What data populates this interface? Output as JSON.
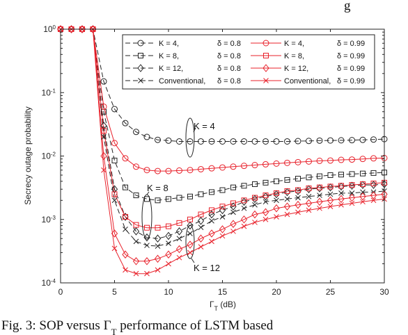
{
  "chart_data": {
    "type": "line",
    "xlabel": "Γ_T (dB)",
    "ylabel": "Secrecy outage probability",
    "xlim": [
      0,
      30
    ],
    "ylim_log10": [
      -4,
      0
    ],
    "yscale": "log",
    "grid": false,
    "legend_position": "top-right",
    "x_ticks": [
      0,
      5,
      10,
      15,
      20,
      25,
      30
    ],
    "y_ticks": [
      {
        "exp": "0"
      },
      {
        "exp": "-1"
      },
      {
        "exp": "-2"
      },
      {
        "exp": "-3"
      },
      {
        "exp": "-4"
      }
    ],
    "x": [
      0,
      1,
      2,
      3,
      4,
      5,
      6,
      7,
      8,
      9,
      10,
      11,
      12,
      13,
      14,
      15,
      16,
      17,
      18,
      19,
      20,
      21,
      22,
      23,
      24,
      25,
      26,
      27,
      28,
      29,
      30
    ],
    "series": [
      {
        "name": "K = 4, δ = 0.8",
        "color": "#222222",
        "dash": "7,4",
        "marker": "circle",
        "values": [
          1,
          1,
          1,
          1,
          0.15,
          0.055,
          0.033,
          0.024,
          0.02,
          0.018,
          0.0175,
          0.017,
          0.017,
          0.017,
          0.017,
          0.017,
          0.017,
          0.017,
          0.017,
          0.017,
          0.017,
          0.017,
          0.0172,
          0.0173,
          0.0175,
          0.0176,
          0.0177,
          0.0178,
          0.018,
          0.0182,
          0.0185
        ]
      },
      {
        "name": "K = 8, δ = 0.8",
        "color": "#222222",
        "dash": "7,4",
        "marker": "square",
        "values": [
          1,
          1,
          1,
          1,
          0.05,
          0.0085,
          0.0032,
          0.0024,
          0.0021,
          0.002,
          0.0021,
          0.0022,
          0.0023,
          0.0025,
          0.0027,
          0.0029,
          0.0032,
          0.0034,
          0.0036,
          0.0038,
          0.004,
          0.0042,
          0.0044,
          0.0046,
          0.0048,
          0.005,
          0.0051,
          0.0052,
          0.0053,
          0.0054,
          0.0055
        ]
      },
      {
        "name": "K = 12, δ = 0.8",
        "color": "#222222",
        "dash": "7,4",
        "marker": "diamond",
        "values": [
          1,
          1,
          1,
          1,
          0.03,
          0.003,
          0.0011,
          0.00065,
          0.00052,
          0.0005,
          0.00055,
          0.00065,
          0.0008,
          0.00095,
          0.0012,
          0.0014,
          0.0016,
          0.0019,
          0.0021,
          0.0023,
          0.0025,
          0.0027,
          0.0028,
          0.003,
          0.0031,
          0.0032,
          0.0033,
          0.0034,
          0.0035,
          0.0035,
          0.0036
        ]
      },
      {
        "name": "Conventional, δ = 0.8",
        "color": "#222222",
        "dash": "7,4",
        "marker": "x",
        "values": [
          1,
          1,
          1,
          1,
          0.02,
          0.002,
          0.0007,
          0.00045,
          0.00039,
          0.00038,
          0.00042,
          0.0005,
          0.0006,
          0.00075,
          0.00095,
          0.0011,
          0.0013,
          0.0015,
          0.0017,
          0.0019,
          0.002,
          0.0021,
          0.0022,
          0.0023,
          0.0024,
          0.0025,
          0.0026,
          0.0026,
          0.0027,
          0.0027,
          0.0028
        ]
      },
      {
        "name": "K = 4, δ = 0.99",
        "color": "#e8202a",
        "dash": "",
        "marker": "circle",
        "values": [
          1,
          1,
          1,
          1,
          0.06,
          0.016,
          0.0092,
          0.0068,
          0.006,
          0.0058,
          0.0058,
          0.0059,
          0.006,
          0.0062,
          0.0064,
          0.0066,
          0.0068,
          0.007,
          0.0072,
          0.0074,
          0.0076,
          0.0078,
          0.008,
          0.0082,
          0.0084,
          0.0085,
          0.0087,
          0.0088,
          0.009,
          0.0092,
          0.0093
        ]
      },
      {
        "name": "K = 8, δ = 0.99",
        "color": "#e8202a",
        "dash": "",
        "marker": "square",
        "values": [
          1,
          1,
          1,
          1,
          0.025,
          0.0025,
          0.0011,
          0.00082,
          0.00074,
          0.00074,
          0.00078,
          0.00088,
          0.001,
          0.0012,
          0.0014,
          0.0016,
          0.0018,
          0.002,
          0.0022,
          0.0024,
          0.0026,
          0.0028,
          0.0029,
          0.0031,
          0.0032,
          0.0033,
          0.0034,
          0.0035,
          0.0036,
          0.0037,
          0.0038
        ]
      },
      {
        "name": "K = 12, δ = 0.99",
        "color": "#e8202a",
        "dash": "",
        "marker": "diamond",
        "values": [
          1,
          1,
          1,
          1,
          0.01,
          0.0006,
          0.00028,
          0.00022,
          0.00022,
          0.00024,
          0.00028,
          0.00034,
          0.0004,
          0.0005,
          0.0006,
          0.0007,
          0.00085,
          0.001,
          0.0012,
          0.0013,
          0.0015,
          0.0016,
          0.0017,
          0.0018,
          0.0019,
          0.002,
          0.0021,
          0.0022,
          0.0023,
          0.0024,
          0.0025
        ]
      },
      {
        "name": "Conventional, δ = 0.99",
        "color": "#e8202a",
        "dash": "",
        "marker": "x",
        "values": [
          1,
          1,
          1,
          1,
          0.006,
          0.00035,
          0.00016,
          0.00014,
          0.00014,
          0.00016,
          0.0002,
          0.00025,
          0.0003,
          0.00037,
          0.00045,
          0.00055,
          0.00065,
          0.00078,
          0.0009,
          0.001,
          0.0011,
          0.0012,
          0.0013,
          0.0014,
          0.0015,
          0.0016,
          0.0017,
          0.0018,
          0.0019,
          0.002,
          0.0021
        ]
      }
    ],
    "legend": {
      "rows": [
        {
          "black": "K = 4,",
          "black_delta": "δ = 0.8",
          "red": "K = 4,",
          "red_delta": "δ = 0.99"
        },
        {
          "black": "K = 8,",
          "black_delta": "δ = 0.8",
          "red": "K = 8,",
          "red_delta": "δ = 0.99"
        },
        {
          "black": "K = 12,",
          "black_delta": "δ = 0.8",
          "red": "K = 12,",
          "red_delta": "δ = 0.99"
        },
        {
          "black": "Conventional,",
          "black_delta": "δ = 0.8",
          "red": "Conventional,",
          "red_delta": "δ = 0.99"
        }
      ]
    },
    "annotations": [
      {
        "text": "K = 4",
        "x": 12
      },
      {
        "text": "K = 8",
        "x": 8
      },
      {
        "text": "K = 12",
        "x": 12
      }
    ]
  },
  "top_partial_text": "g",
  "caption": "Fig. 3: SOP versus Γ_T performance of LSTM based"
}
